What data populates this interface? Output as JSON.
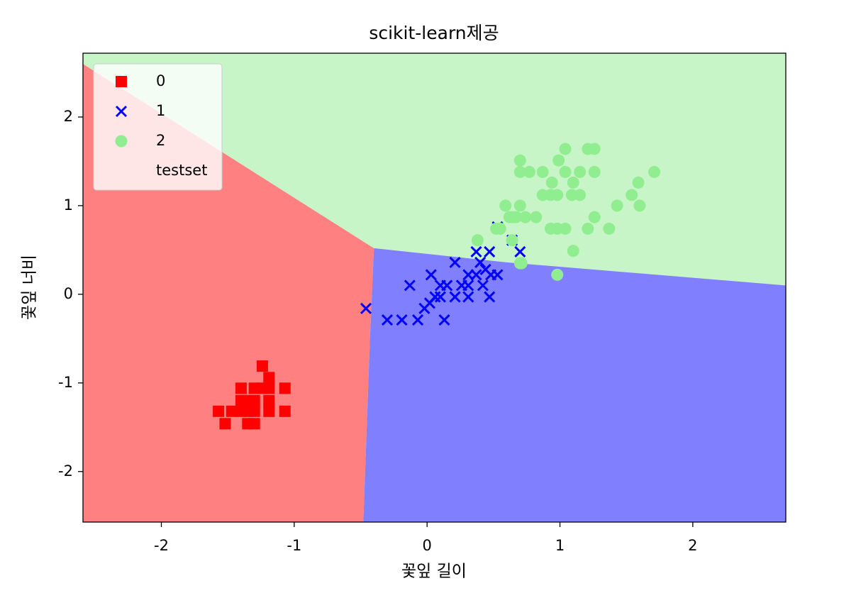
{
  "chart_data": {
    "type": "scatter",
    "title": "scikit-learn제공",
    "x_label": "꽃잎 길이",
    "y_label": "꽃잎 너비",
    "xlim": [
      -2.59,
      2.7
    ],
    "ylim": [
      -2.57,
      2.72
    ],
    "xticks": [
      -2,
      -1,
      0,
      1,
      2
    ],
    "yticks": [
      -2,
      -1,
      0,
      1,
      2
    ],
    "legend": "upper left",
    "regions": [
      {
        "color": "#ff8080",
        "points": [
          [
            -2.59,
            2.6
          ],
          [
            -0.4,
            0.52
          ],
          [
            -0.43,
            -0.5
          ],
          [
            -0.48,
            -2.57
          ],
          [
            -2.59,
            -2.57
          ]
        ]
      },
      {
        "color": "#c8f5c8",
        "points": [
          [
            -2.59,
            2.72
          ],
          [
            2.7,
            2.72
          ],
          [
            2.7,
            0.1
          ],
          [
            0.6,
            0.36
          ],
          [
            -0.4,
            0.52
          ],
          [
            -2.59,
            2.6
          ]
        ]
      },
      {
        "color": "#8080ff",
        "points": [
          [
            -0.4,
            0.52
          ],
          [
            0.6,
            0.36
          ],
          [
            2.7,
            0.1
          ],
          [
            2.7,
            -2.57
          ],
          [
            -0.48,
            -2.57
          ],
          [
            -0.43,
            -0.5
          ]
        ]
      }
    ],
    "series": [
      {
        "name": "0",
        "color": "#ff0000",
        "marker": "s",
        "x": [
          -1.57,
          -1.52,
          -1.47,
          -1.4,
          -1.4,
          -1.35,
          -1.35,
          -1.3,
          -1.3,
          -1.3,
          -1.3,
          -1.24,
          -1.24,
          -1.19,
          -1.19,
          -1.19,
          -1.19,
          -1.07,
          -1.07,
          -1.4,
          -1.35
        ],
        "values": [
          -1.32,
          -1.46,
          -1.32,
          -1.06,
          -1.2,
          -1.32,
          -1.46,
          -1.06,
          -1.2,
          -1.32,
          -1.46,
          -0.81,
          -1.06,
          -0.94,
          -1.06,
          -1.2,
          -1.32,
          -1.06,
          -1.32,
          -1.32,
          -1.2
        ]
      },
      {
        "name": "1",
        "color": "#0000ff",
        "marker": "x",
        "x": [
          -0.46,
          -0.3,
          -0.19,
          -0.07,
          -0.13,
          -0.02,
          0.02,
          0.03,
          0.06,
          0.1,
          0.1,
          0.13,
          0.15,
          0.21,
          0.21,
          0.26,
          0.31,
          0.31,
          0.31,
          0.37,
          0.37,
          0.4,
          0.42,
          0.44,
          0.47,
          0.47,
          0.48,
          0.53,
          0.53,
          0.64,
          0.7
        ],
        "values": [
          -0.16,
          -0.29,
          -0.29,
          -0.29,
          0.1,
          -0.16,
          -0.1,
          0.22,
          -0.03,
          0.1,
          -0.03,
          -0.29,
          0.1,
          0.36,
          -0.03,
          0.1,
          0.22,
          0.1,
          -0.03,
          0.48,
          0.22,
          0.36,
          0.1,
          0.28,
          0.48,
          -0.03,
          0.22,
          0.22,
          0.76,
          0.61,
          0.48
        ]
      },
      {
        "name": "2",
        "color": "#90ee90",
        "marker": "o",
        "x": [
          0.38,
          0.52,
          0.55,
          0.59,
          0.62,
          0.64,
          0.64,
          0.67,
          0.7,
          0.7,
          0.7,
          0.71,
          0.7,
          0.74,
          0.77,
          0.82,
          0.87,
          0.87,
          0.93,
          0.94,
          0.98,
          0.99,
          0.98,
          1.04,
          1.04,
          1.04,
          1.09,
          1.1,
          1.1,
          1.15,
          1.15,
          1.21,
          1.21,
          1.26,
          1.26,
          1.26,
          1.37,
          1.43,
          1.54,
          1.59,
          1.6,
          1.71,
          0.98,
          0.93
        ],
        "values": [
          0.61,
          0.74,
          0.74,
          1.0,
          0.87,
          0.61,
          0.87,
          0.87,
          1.0,
          1.38,
          1.51,
          0.35,
          0.35,
          0.87,
          1.38,
          0.87,
          1.38,
          1.12,
          1.12,
          1.26,
          1.12,
          1.51,
          0.22,
          1.64,
          1.38,
          0.74,
          1.12,
          0.49,
          1.26,
          1.38,
          1.12,
          1.64,
          0.74,
          1.64,
          1.38,
          0.87,
          0.74,
          1.0,
          1.12,
          1.26,
          1.0,
          1.38,
          0.74,
          0.74
        ]
      },
      {
        "name": "testset",
        "color": "none",
        "marker": "o",
        "x": [],
        "values": []
      }
    ]
  }
}
